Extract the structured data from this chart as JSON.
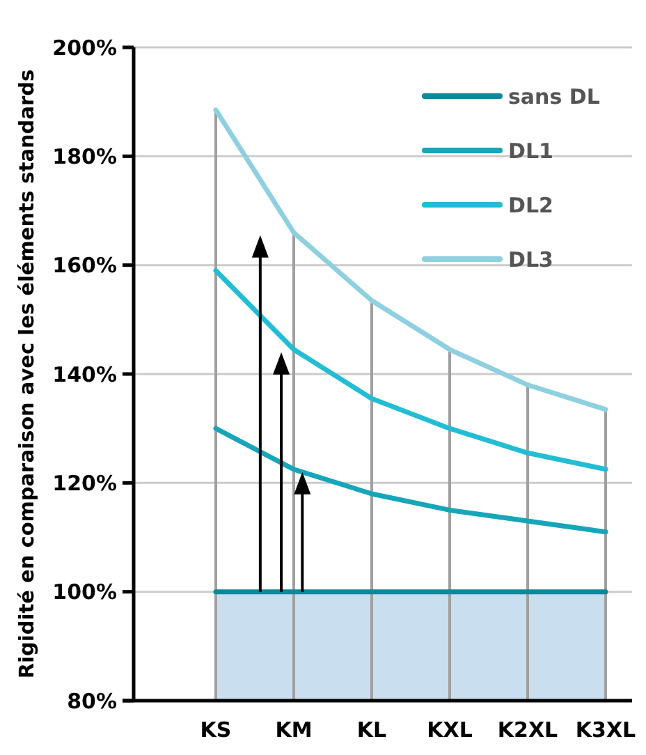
{
  "chart_data": {
    "type": "line",
    "ylabel": "Rigidité en comparaison avec les éléments standards",
    "categories": [
      "KS",
      "KM",
      "KL",
      "KXL",
      "K2XL",
      "K3XL"
    ],
    "series": [
      {
        "name": "sans DL",
        "color": "#0a8a9c",
        "values": [
          100,
          100,
          100,
          100,
          100,
          100
        ]
      },
      {
        "name": "DL1",
        "color": "#17a5ba",
        "values": [
          130,
          122.5,
          118,
          115,
          113,
          111
        ]
      },
      {
        "name": "DL2",
        "color": "#22bdd4",
        "values": [
          159,
          144.5,
          135.5,
          130,
          125.5,
          122.5
        ]
      },
      {
        "name": "DL3",
        "color": "#8fd0e0",
        "values": [
          188.5,
          166,
          153.5,
          144.5,
          138,
          133.5
        ]
      }
    ],
    "bands": [
      {
        "axis": "y",
        "from": 80,
        "to": 100,
        "color": "#c9deee"
      }
    ],
    "ref_lines": [
      {
        "axis": "x",
        "value": "KS",
        "color": "#a0a0a0"
      },
      {
        "axis": "x",
        "value": "KM",
        "color": "#a0a0a0"
      },
      {
        "axis": "x",
        "value": "KL",
        "color": "#a0a0a0"
      },
      {
        "axis": "x",
        "value": "KXL",
        "color": "#a0a0a0"
      },
      {
        "axis": "x",
        "value": "K2XL",
        "color": "#a0a0a0"
      },
      {
        "axis": "x",
        "value": "K3XL",
        "color": "#a0a0a0"
      }
    ],
    "ylim": [
      80,
      200
    ],
    "yticks": [
      {
        "value": 80,
        "label": "80%"
      },
      {
        "value": 100,
        "label": "100%"
      },
      {
        "value": 120,
        "label": "120%"
      },
      {
        "value": 140,
        "label": "140%"
      },
      {
        "value": 160,
        "label": "160%"
      },
      {
        "value": 180,
        "label": "180%"
      },
      {
        "value": 200,
        "label": "200%"
      }
    ],
    "grid": true,
    "legend": "top right",
    "marker": "none",
    "line_style": "solid"
  }
}
